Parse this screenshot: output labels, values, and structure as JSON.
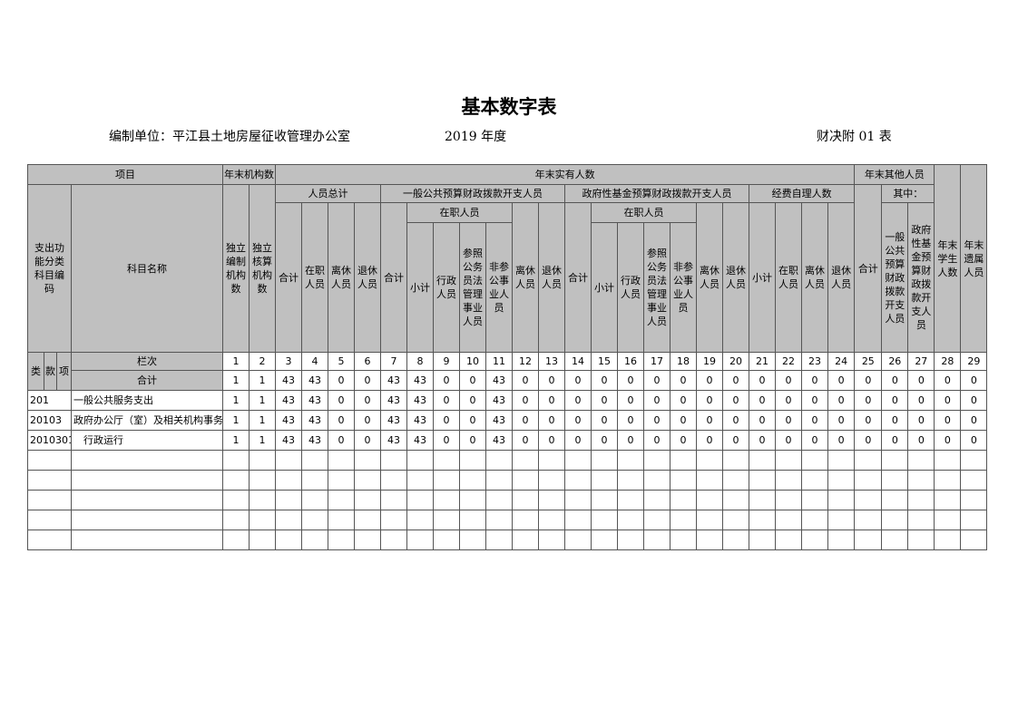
{
  "title": "基本数字表",
  "unit_label": "编制单位：平江县土地房屋征收管理办公室",
  "year_label": "2019 年度",
  "form_no": "财决附 01 表",
  "header": {
    "item": "项目",
    "org_count": "年末机构数",
    "actual_staff": "年末实有人数",
    "other_staff": "年末其他人员",
    "students": "年末学生人数",
    "dependents": "年末遗属人员",
    "func_code": "支出功能分类科目编码",
    "subject_name": "科目名称",
    "indep_org": "独立编制机构数",
    "indep_acct": "独立核算机构数",
    "total_staff": "人员总计",
    "general_budget": "一般公共预算财政拨款开支人员",
    "gov_fund": "政府性基金预算财政拨款开支人员",
    "self_funded": "经费自理人数",
    "total": "合计",
    "of_which": "其中：",
    "on_duty": "在职人员",
    "retired_lx": "离休人员",
    "retired_tx": "退休人员",
    "subtotal": "小计",
    "admin": "行政人员",
    "civil_ref": "参照公务员法管理事业人员",
    "non_ref": "非参公事业人员",
    "other_general": "一般公共预算财政拨款开支人员",
    "other_gov": "政府性基金预算财政拨款开支人员",
    "lei": "类",
    "kuan": "款",
    "xiang": "项",
    "col_index": "栏次",
    "col_numbers": [
      "1",
      "2",
      "3",
      "4",
      "5",
      "6",
      "7",
      "8",
      "9",
      "10",
      "11",
      "12",
      "13",
      "14",
      "15",
      "16",
      "17",
      "18",
      "19",
      "20",
      "21",
      "22",
      "23",
      "24",
      "25",
      "26",
      "27",
      "28",
      "29"
    ]
  },
  "total_row": {
    "label": "合计",
    "values": [
      "1",
      "1",
      "43",
      "43",
      "0",
      "0",
      "43",
      "43",
      "0",
      "0",
      "43",
      "0",
      "0",
      "0",
      "0",
      "0",
      "0",
      "0",
      "0",
      "0",
      "0",
      "0",
      "0",
      "0",
      "0",
      "0",
      "0",
      "0",
      "0"
    ]
  },
  "rows": [
    {
      "code": "201",
      "name": "一般公共服务支出",
      "values": [
        "1",
        "1",
        "43",
        "43",
        "0",
        "0",
        "43",
        "43",
        "0",
        "0",
        "43",
        "0",
        "0",
        "0",
        "0",
        "0",
        "0",
        "0",
        "0",
        "0",
        "0",
        "0",
        "0",
        "0",
        "0",
        "0",
        "0",
        "0",
        "0"
      ]
    },
    {
      "code": "20103",
      "name": "政府办公厅（室）及相关机构事务",
      "values": [
        "1",
        "1",
        "43",
        "43",
        "0",
        "0",
        "43",
        "43",
        "0",
        "0",
        "43",
        "0",
        "0",
        "0",
        "0",
        "0",
        "0",
        "0",
        "0",
        "0",
        "0",
        "0",
        "0",
        "0",
        "0",
        "0",
        "0",
        "0",
        "0"
      ]
    },
    {
      "code": "2010301",
      "name": "　行政运行",
      "values": [
        "1",
        "1",
        "43",
        "43",
        "0",
        "0",
        "43",
        "43",
        "0",
        "0",
        "43",
        "0",
        "0",
        "0",
        "0",
        "0",
        "0",
        "0",
        "0",
        "0",
        "0",
        "0",
        "0",
        "0",
        "0",
        "0",
        "0",
        "0",
        "0"
      ]
    }
  ],
  "empty_rows": 5,
  "colors": {
    "header_bg": "#c0c0c0",
    "border": "#555555"
  }
}
